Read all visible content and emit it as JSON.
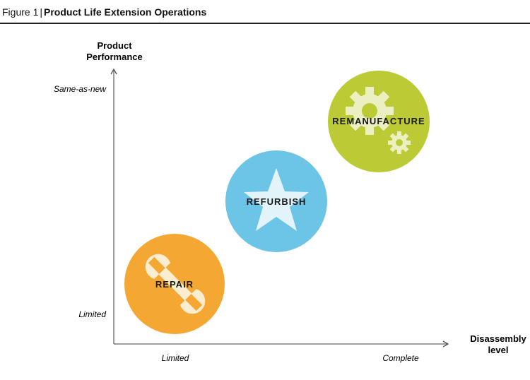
{
  "figure": {
    "number": "Figure 1",
    "separator": "|",
    "title": "Product Life Extension Operations"
  },
  "axes": {
    "y_label_line1": "Product",
    "y_label_line2": "Performance",
    "y_tick_high": "Same-as-new",
    "y_tick_low": "Limited",
    "x_label_line1": "Disassembly",
    "x_label_line2": "level",
    "x_tick_low": "Limited",
    "x_tick_high": "Complete"
  },
  "operations": [
    {
      "label": "REPAIR",
      "color": "#f4a833",
      "icon": "wrench-icon"
    },
    {
      "label": "REFURBISH",
      "color": "#6cc4e6",
      "icon": "star-icon"
    },
    {
      "label": "REMANUFACTURE",
      "color": "#bccb35",
      "icon": "gears-icon"
    }
  ],
  "icon_color": "#fbeed0"
}
